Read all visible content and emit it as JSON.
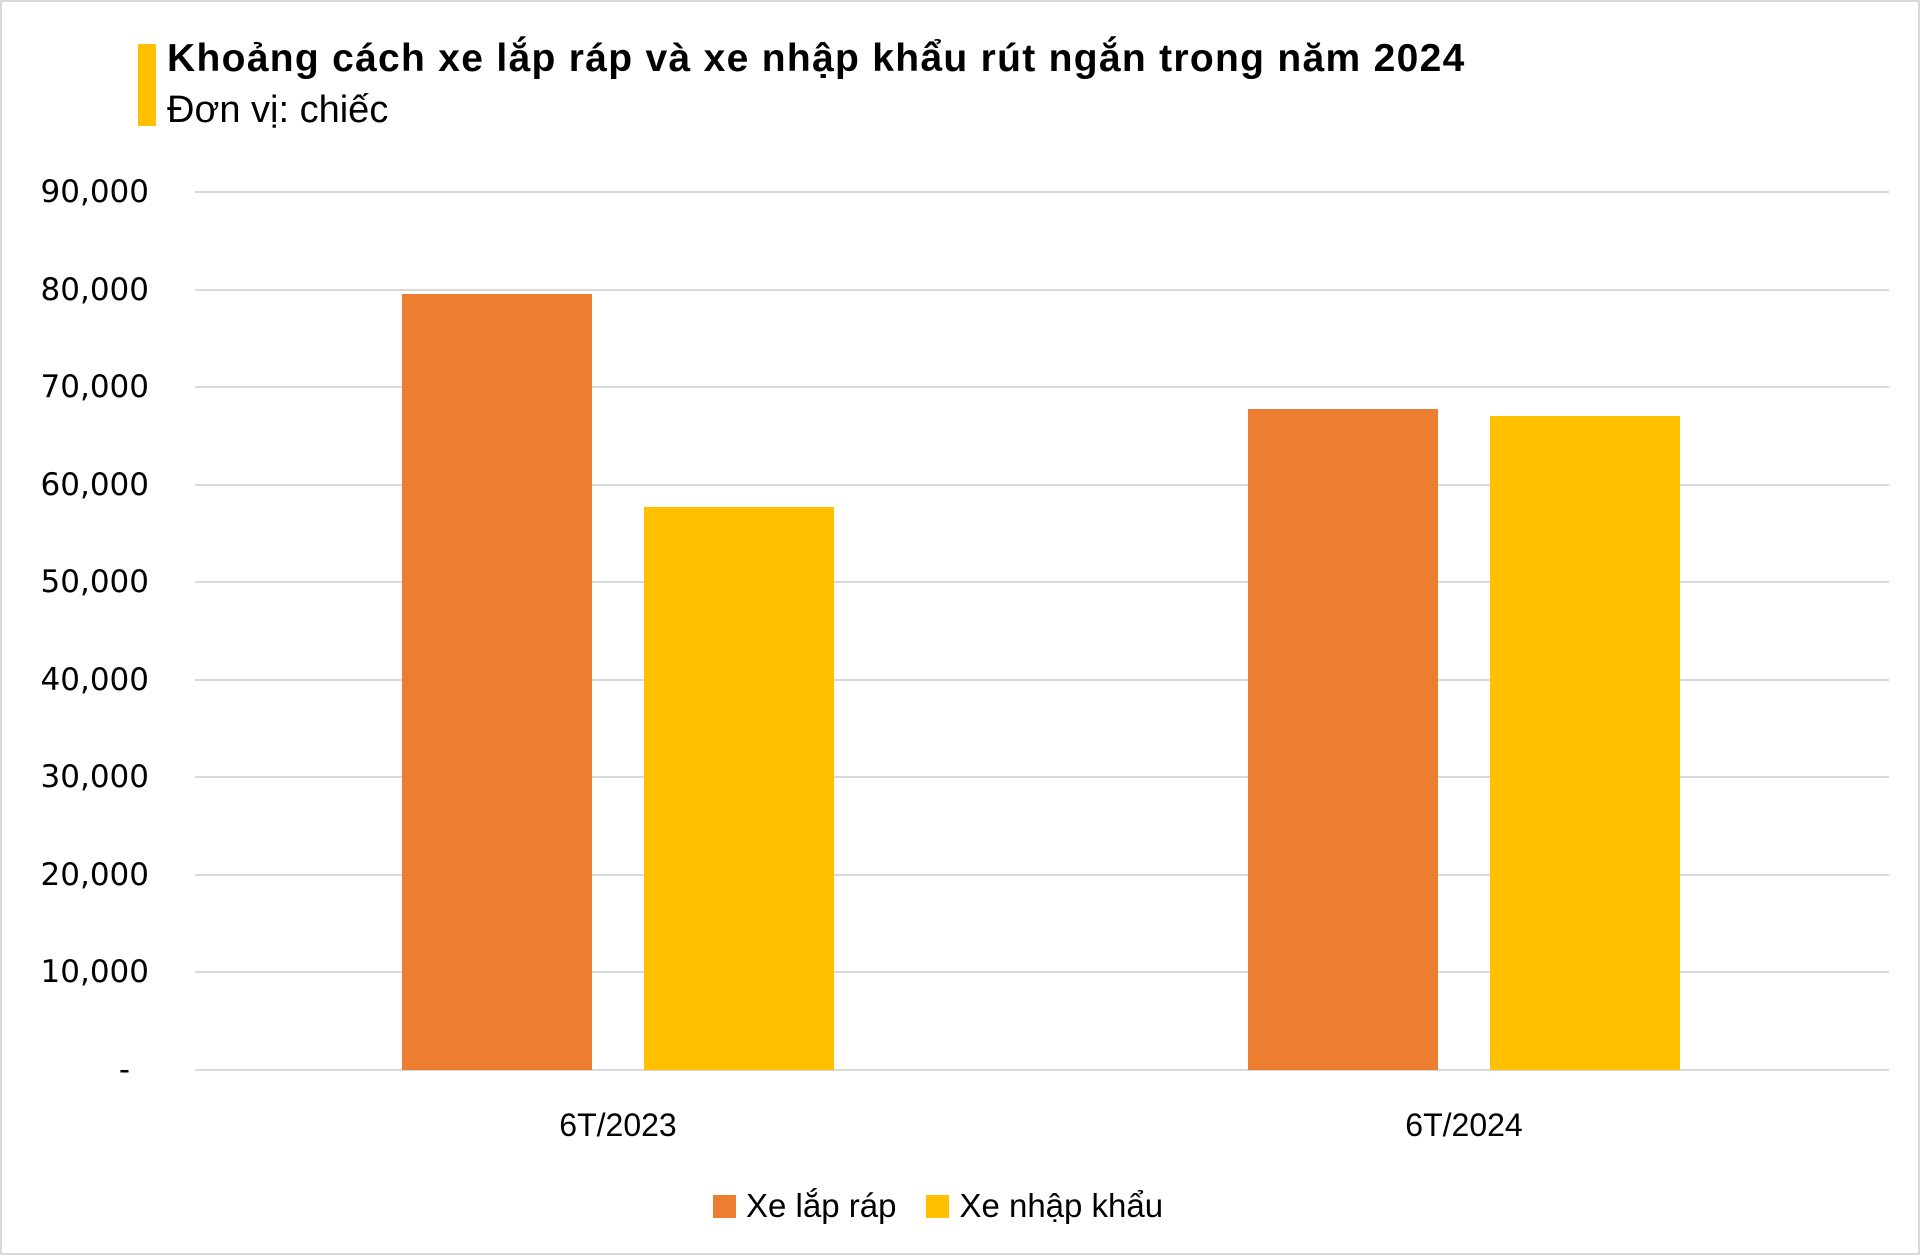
{
  "header": {
    "title": "Khoảng cách xe lắp ráp và xe nhập khẩu rút ngắn trong năm 2024",
    "subtitle": "Đơn vị: chiếc",
    "accent_color": "#FFC000"
  },
  "axis": {
    "y_ticks": [
      "90,000",
      "80,000",
      "70,000",
      "60,000",
      "50,000",
      "40,000",
      "30,000",
      "20,000",
      "10,000",
      "-"
    ],
    "x_ticks": [
      "6T/2023",
      "6T/2024"
    ]
  },
  "legend": {
    "items": [
      {
        "label": "Xe lắp ráp",
        "color": "#ED7D31"
      },
      {
        "label": "Xe nhập khẩu",
        "color": "#FFC000"
      }
    ]
  },
  "chart_data": {
    "type": "bar",
    "title": "Khoảng cách xe lắp ráp và xe nhập khẩu rút ngắn trong năm 2024",
    "subtitle": "Đơn vị: chiếc",
    "categories": [
      "6T/2023",
      "6T/2024"
    ],
    "series": [
      {
        "name": "Xe lắp ráp",
        "color": "#ED7D31",
        "values": [
          79500,
          67800
        ]
      },
      {
        "name": "Xe nhập khẩu",
        "color": "#FFC000",
        "values": [
          57700,
          67000
        ]
      }
    ],
    "xlabel": "",
    "ylabel": "",
    "ylim": [
      0,
      90000
    ],
    "y_tick_step": 10000,
    "grid": true,
    "legend_position": "bottom"
  }
}
